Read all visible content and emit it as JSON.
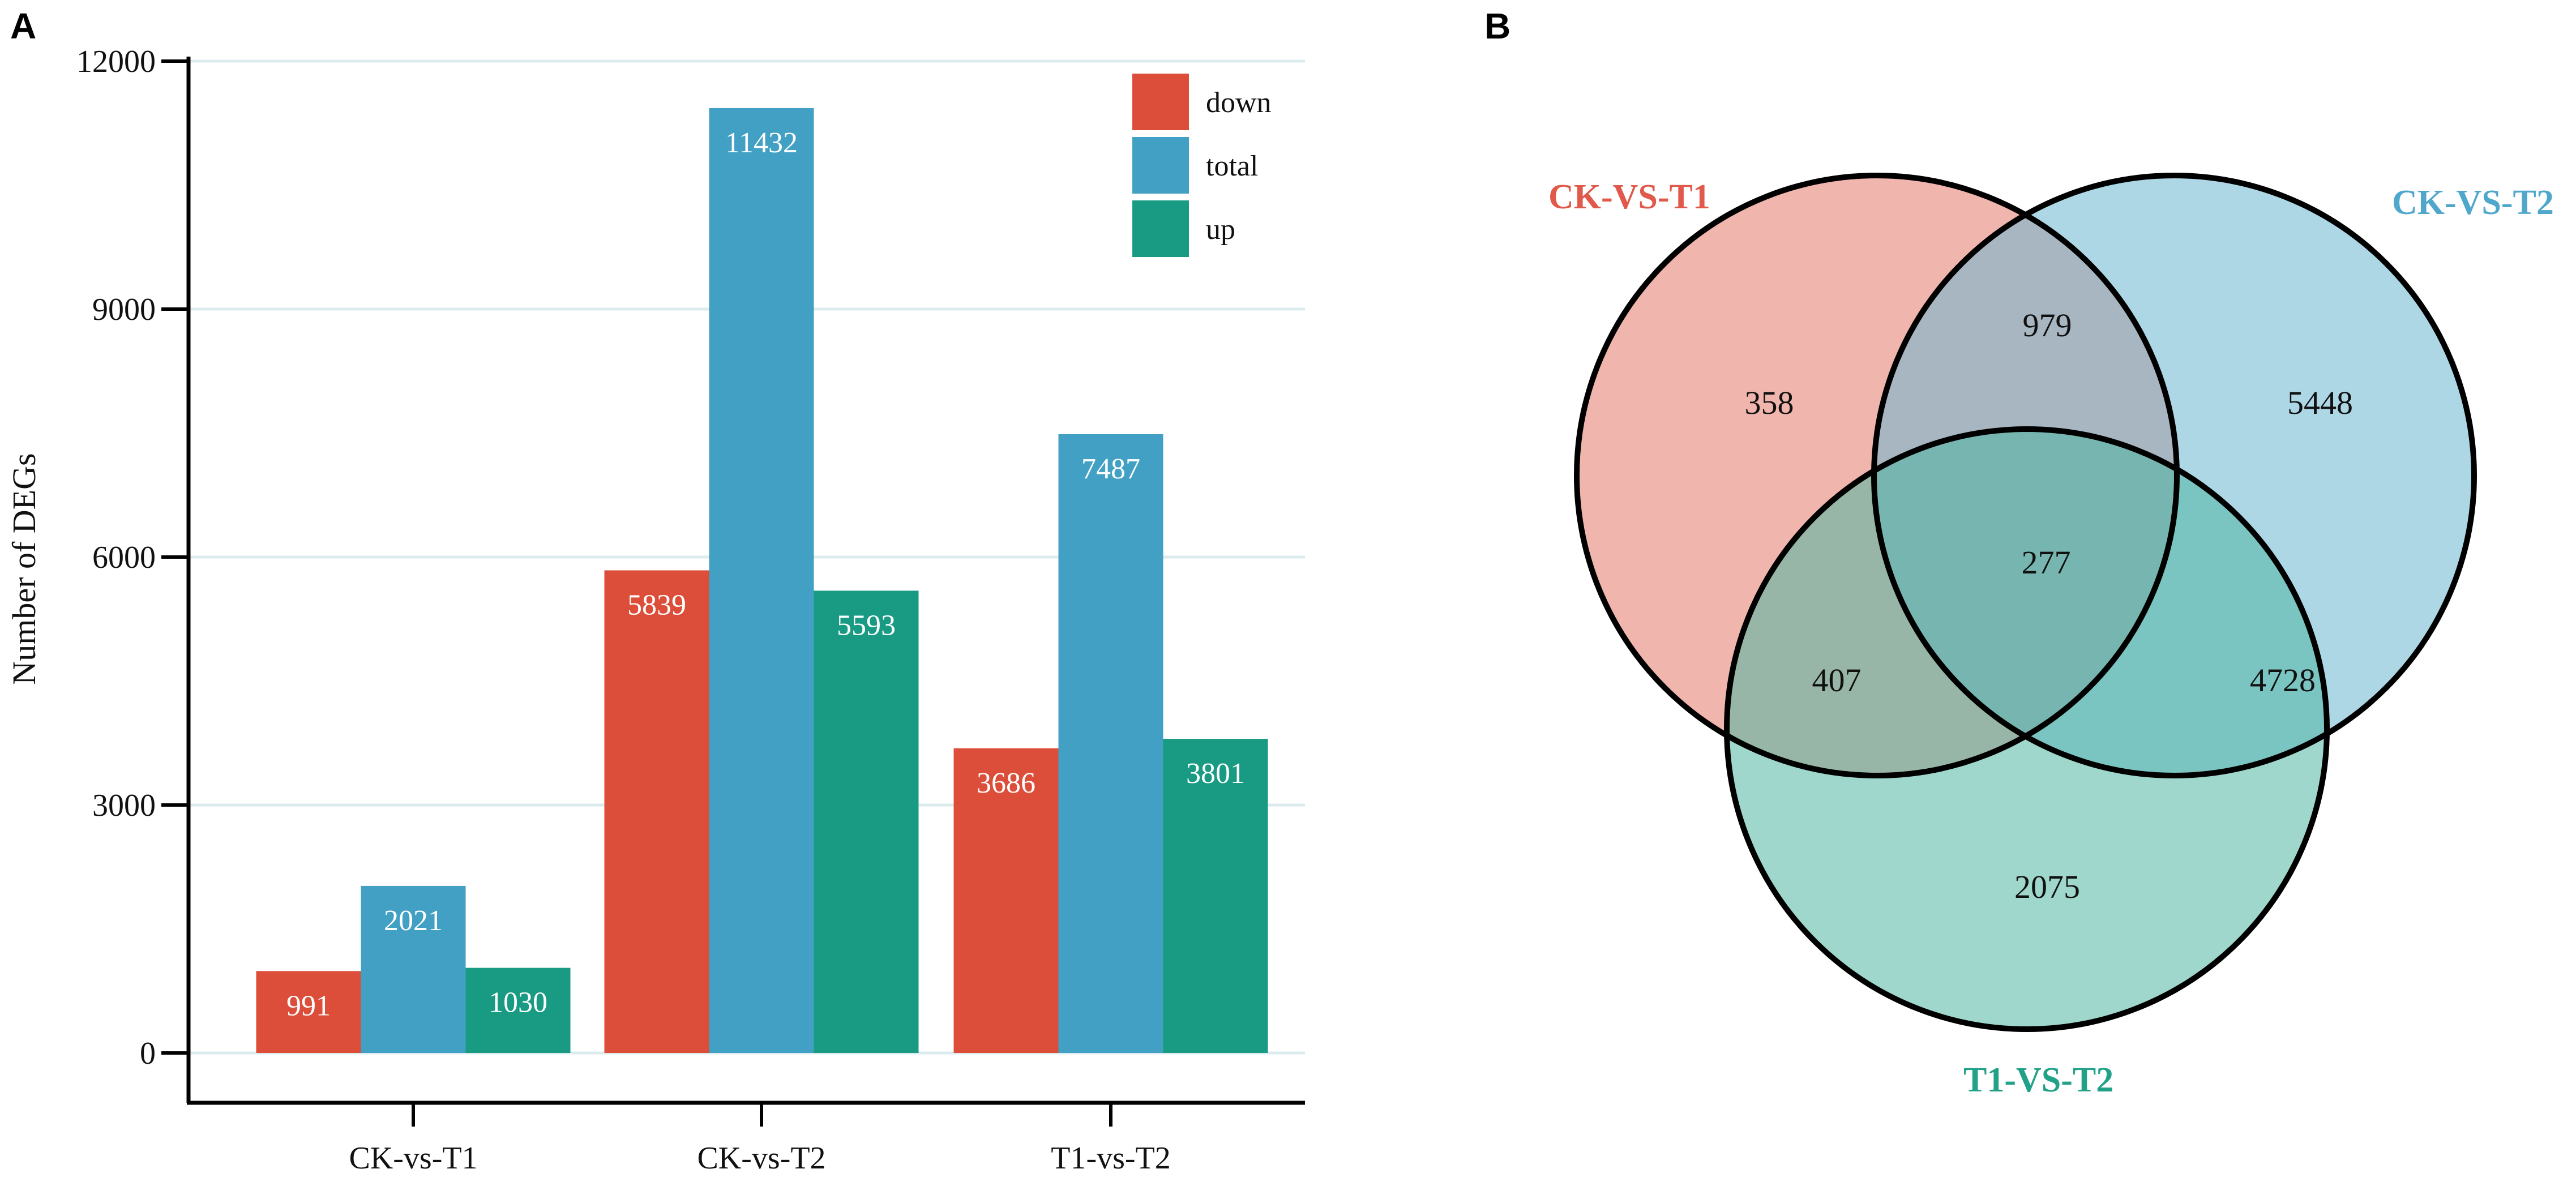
{
  "panels": {
    "a_label": "A",
    "b_label": "B"
  },
  "chart_data": [
    {
      "type": "bar",
      "title": "",
      "xlabel": "",
      "ylabel": "Number of DEGs",
      "ylim": [
        0,
        12000
      ],
      "yticks": [
        0,
        3000,
        6000,
        9000,
        12000
      ],
      "grid": true,
      "legend_position": "top-right",
      "categories": [
        "CK-vs-T1",
        "CK-vs-T2",
        "T1-vs-T2"
      ],
      "series": [
        {
          "name": "down",
          "color": "#DC4E3A",
          "values": [
            991,
            5839,
            3686
          ]
        },
        {
          "name": "total",
          "color": "#41A0C3",
          "values": [
            2021,
            11432,
            7487
          ]
        },
        {
          "name": "up",
          "color": "#189B82",
          "values": [
            1030,
            5593,
            3801
          ]
        }
      ]
    },
    {
      "type": "venn",
      "sets": [
        {
          "name": "CK-VS-T1",
          "color": "#E0594A",
          "fill": "#E47A6C"
        },
        {
          "name": "CK-VS-T2",
          "color": "#4FA7CB",
          "fill": "#6CB6D2"
        },
        {
          "name": "T1-VS-T2",
          "color": "#20A188",
          "fill": "#50B6A2"
        }
      ],
      "regions": {
        "only_ck_t1": 358,
        "only_ck_t2": 5448,
        "only_t1_t2": 2075,
        "ck_t1_and_ck_t2": 979,
        "ck_t1_and_t1_t2": 407,
        "ck_t2_and_t1_t2": 4728,
        "all_three": 277
      }
    }
  ]
}
